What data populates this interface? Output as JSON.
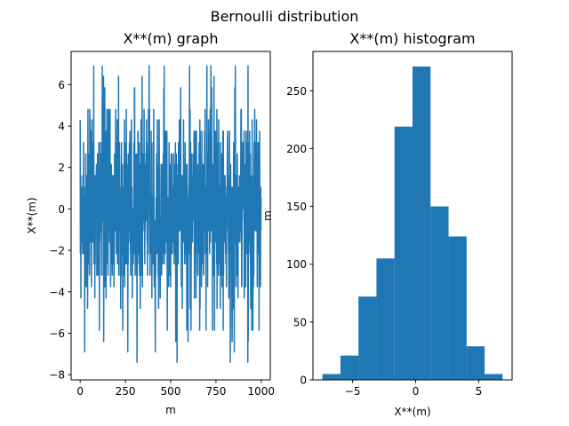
{
  "figure": {
    "title": "Bernoulli distribution"
  },
  "chart_data": [
    {
      "type": "line",
      "title": "X**(m) graph",
      "xlabel": "m",
      "ylabel": "X**(m)",
      "xlim": [
        -50,
        1050
      ],
      "ylim": [
        -8.25,
        7.6
      ],
      "xticks": [
        0,
        250,
        500,
        750,
        1000
      ],
      "xtick_labels": [
        "0",
        "250",
        "500",
        "750",
        "1000"
      ],
      "yticks": [
        -8,
        -6,
        -4,
        -2,
        0,
        2,
        4,
        6
      ],
      "ytick_labels": [
        "−8",
        "−6",
        "−4",
        "−2",
        "0",
        "2",
        "4",
        "6"
      ],
      "color": "#1f77b4",
      "grid": false,
      "series": [
        {
          "n_points": 1000,
          "x_start": 0,
          "x_step": 1,
          "value_levels": [
            -7.4,
            -6.9,
            -6.4,
            -5.85,
            -4.8,
            -4.3,
            -3.75,
            -3.2,
            -2.65,
            -2.15,
            -1.6,
            -1.05,
            -0.55,
            0,
            0.55,
            1.05,
            1.6,
            2.15,
            2.65,
            3.2,
            3.75,
            4.3,
            4.8,
            5.85,
            6.4,
            6.9
          ],
          "range": [
            -7.4,
            6.9
          ]
        }
      ]
    },
    {
      "type": "bar",
      "title": "X**(m) histogram",
      "xlabel": "X**(m)",
      "ylabel": "m",
      "xlim": [
        -8.15,
        7.65
      ],
      "ylim": [
        0,
        284
      ],
      "xticks": [
        -5,
        0,
        5
      ],
      "xtick_labels": [
        "−5",
        "0",
        "5"
      ],
      "yticks": [
        0,
        50,
        100,
        150,
        200,
        250
      ],
      "ytick_labels": [
        "0",
        "50",
        "100",
        "150",
        "200",
        "250"
      ],
      "color": "#1f77b4",
      "grid": false,
      "bin_edges": [
        -7.4,
        -5.97,
        -4.54,
        -3.11,
        -1.68,
        -0.25,
        1.18,
        2.61,
        4.04,
        5.47,
        6.9
      ],
      "values": [
        5,
        21,
        72,
        105,
        219,
        271,
        150,
        124,
        29,
        5
      ]
    }
  ]
}
